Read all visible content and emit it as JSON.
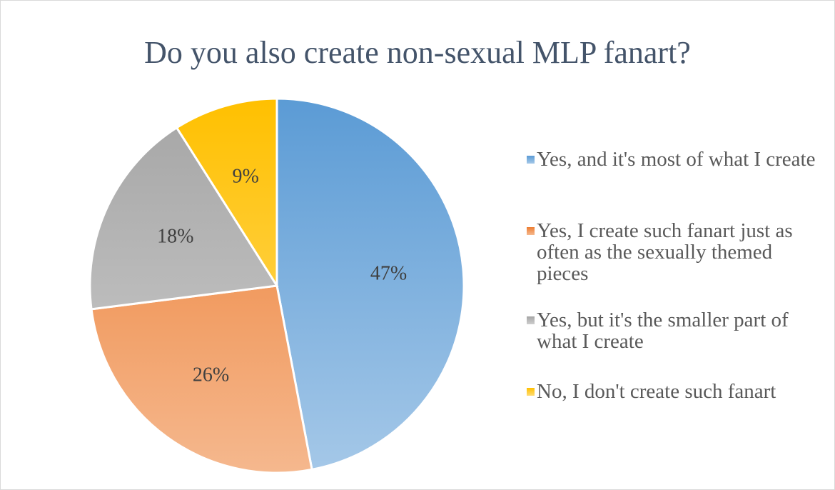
{
  "chart_data": {
    "type": "pie",
    "title": "Do you also create non-sexual MLP fanart?",
    "categories": [
      "Yes, and it's most of what I create",
      "Yes, I create such fanart just as often as the sexually themed pieces",
      "Yes, but it's the smaller part of what I create",
      "No, I don't create such fanart"
    ],
    "values": [
      47,
      26,
      18,
      9
    ],
    "value_labels": [
      "47%",
      "26%",
      "18%",
      "9%"
    ],
    "colors": [
      "#5b9bd5",
      "#ed7d31",
      "#a5a5a5",
      "#ffc000"
    ],
    "legend": "right"
  }
}
